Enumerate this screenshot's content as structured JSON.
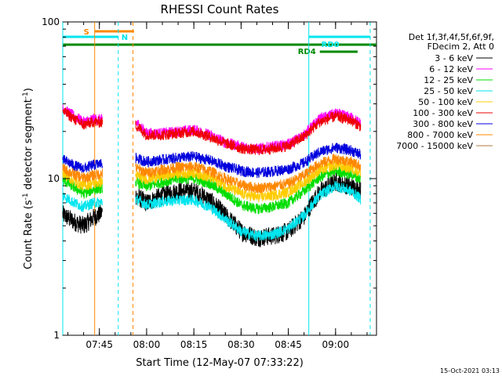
{
  "chart_data": {
    "type": "line",
    "title": "RHESSI Count Rates",
    "xlabel": "Start Time (12-May-07 07:33:22)",
    "ylabel_main": "Count Rate (s",
    "ylabel_sup": "-1",
    "ylabel_tail": " detector segment",
    "ylabel_sup2": "-1",
    "ylabel_end": ")",
    "y_scale": "log",
    "ylim": [
      1,
      100
    ],
    "xlim": [
      "07:33:22",
      "09:13:00"
    ],
    "x_ticks": [
      "07:45",
      "08:00",
      "08:15",
      "08:30",
      "08:45",
      "09:00"
    ],
    "y_ticks": [
      "1",
      "10",
      "100"
    ],
    "legend_header": [
      "Det 1f,3f,4f,5f,6f,9f,",
      "FDecim 2, Att 0"
    ],
    "legend_position": "right",
    "grid": false,
    "data_gap": [
      "07:48:00",
      "07:56:30"
    ],
    "series": [
      {
        "name": "3 - 6 keV",
        "color": "#000000",
        "points": [
          [
            "07:33:22",
            5.9
          ],
          [
            "07:37",
            5.3
          ],
          [
            "07:40",
            5.0
          ],
          [
            "07:43",
            5.6
          ],
          [
            "07:56:30",
            7.8
          ],
          [
            "08:00",
            7.0
          ],
          [
            "08:05",
            7.8
          ],
          [
            "08:10",
            8.3
          ],
          [
            "08:15",
            8.3
          ],
          [
            "08:20",
            7.3
          ],
          [
            "08:25",
            5.8
          ],
          [
            "08:30",
            4.6
          ],
          [
            "08:35",
            4.2
          ],
          [
            "08:40",
            4.3
          ],
          [
            "08:45",
            4.6
          ],
          [
            "08:50",
            5.7
          ],
          [
            "08:55",
            8.2
          ],
          [
            "09:00",
            9.5
          ],
          [
            "09:05",
            8.9
          ],
          [
            "09:08",
            8.4
          ]
        ]
      },
      {
        "name": "6 - 12 keV",
        "color": "#ff00ff",
        "points": [
          [
            "07:33:22",
            28
          ],
          [
            "07:37",
            25
          ],
          [
            "07:40",
            23
          ],
          [
            "07:43",
            24
          ],
          [
            "07:56:30",
            23
          ],
          [
            "08:00",
            19.5
          ],
          [
            "08:05",
            19.5
          ],
          [
            "08:10",
            20
          ],
          [
            "08:15",
            20.5
          ],
          [
            "08:20",
            19
          ],
          [
            "08:25",
            17
          ],
          [
            "08:30",
            16
          ],
          [
            "08:35",
            15.5
          ],
          [
            "08:40",
            16
          ],
          [
            "08:45",
            16.5
          ],
          [
            "08:50",
            19
          ],
          [
            "08:55",
            24
          ],
          [
            "09:00",
            26
          ],
          [
            "09:05",
            24.5
          ],
          [
            "09:08",
            22.5
          ]
        ]
      },
      {
        "name": "12 - 25 keV",
        "color": "#00dd00",
        "points": [
          [
            "07:33:22",
            9.8
          ],
          [
            "07:37",
            8.8
          ],
          [
            "07:40",
            8.0
          ],
          [
            "07:43",
            8.5
          ],
          [
            "07:56:30",
            9.5
          ],
          [
            "08:00",
            8.9
          ],
          [
            "08:05",
            9.5
          ],
          [
            "08:10",
            10
          ],
          [
            "08:15",
            10
          ],
          [
            "08:20",
            9.3
          ],
          [
            "08:25",
            8.0
          ],
          [
            "08:30",
            6.8
          ],
          [
            "08:35",
            6.4
          ],
          [
            "08:40",
            6.6
          ],
          [
            "08:45",
            7.0
          ],
          [
            "08:50",
            8.3
          ],
          [
            "08:55",
            10.2
          ],
          [
            "09:00",
            11.2
          ],
          [
            "09:05",
            10.6
          ],
          [
            "09:08",
            9.9
          ]
        ]
      },
      {
        "name": "25 - 50 keV",
        "color": "#00e5ee",
        "points": [
          [
            "07:33:22",
            7.8
          ],
          [
            "07:37",
            7.0
          ],
          [
            "07:40",
            6.6
          ],
          [
            "07:43",
            7.0
          ],
          [
            "07:56:30",
            7.4
          ],
          [
            "08:00",
            6.8
          ],
          [
            "08:05",
            7.1
          ],
          [
            "08:10",
            7.3
          ],
          [
            "08:15",
            7.3
          ],
          [
            "08:20",
            6.6
          ],
          [
            "08:25",
            5.5
          ],
          [
            "08:30",
            4.6
          ],
          [
            "08:35",
            4.3
          ],
          [
            "08:40",
            4.4
          ],
          [
            "08:45",
            4.8
          ],
          [
            "08:50",
            5.8
          ],
          [
            "08:55",
            7.8
          ],
          [
            "09:00",
            9.0
          ],
          [
            "09:05",
            8.3
          ],
          [
            "09:08",
            7.4
          ]
        ]
      },
      {
        "name": "50 - 100 keV",
        "color": "#ffcc00",
        "points": [
          [
            "07:33:22",
            10.8
          ],
          [
            "07:37",
            9.6
          ],
          [
            "07:40",
            9.0
          ],
          [
            "07:43",
            9.3
          ],
          [
            "07:56:30",
            10.5
          ],
          [
            "08:00",
            9.9
          ],
          [
            "08:05",
            10.4
          ],
          [
            "08:10",
            10.8
          ],
          [
            "08:15",
            10.9
          ],
          [
            "08:20",
            10.2
          ],
          [
            "08:25",
            9.0
          ],
          [
            "08:30",
            8.0
          ],
          [
            "08:35",
            7.6
          ],
          [
            "08:40",
            7.8
          ],
          [
            "08:45",
            8.2
          ],
          [
            "08:50",
            9.4
          ],
          [
            "08:55",
            11.3
          ],
          [
            "09:00",
            12.2
          ],
          [
            "09:05",
            11.6
          ],
          [
            "09:08",
            11.0
          ]
        ]
      },
      {
        "name": "100 - 300 keV",
        "color": "#ee0000",
        "points": [
          [
            "07:33:22",
            27
          ],
          [
            "07:37",
            24
          ],
          [
            "07:40",
            22
          ],
          [
            "07:43",
            23
          ],
          [
            "07:56:30",
            22
          ],
          [
            "08:00",
            19
          ],
          [
            "08:05",
            19
          ],
          [
            "08:10",
            19.5
          ],
          [
            "08:15",
            20
          ],
          [
            "08:20",
            18.5
          ],
          [
            "08:25",
            16.8
          ],
          [
            "08:30",
            15.6
          ],
          [
            "08:35",
            15.2
          ],
          [
            "08:40",
            15.5
          ],
          [
            "08:45",
            16.2
          ],
          [
            "08:50",
            18.5
          ],
          [
            "08:55",
            23
          ],
          [
            "09:00",
            25
          ],
          [
            "09:05",
            23.5
          ],
          [
            "09:08",
            21.5
          ]
        ]
      },
      {
        "name": "300 - 800 keV",
        "color": "#0000dd",
        "points": [
          [
            "07:33:22",
            13.2
          ],
          [
            "07:37",
            12.1
          ],
          [
            "07:40",
            11.6
          ],
          [
            "07:43",
            12.2
          ],
          [
            "07:56:30",
            13.5
          ],
          [
            "08:00",
            12.8
          ],
          [
            "08:05",
            13.2
          ],
          [
            "08:10",
            13.6
          ],
          [
            "08:15",
            13.8
          ],
          [
            "08:20",
            13.1
          ],
          [
            "08:25",
            12.0
          ],
          [
            "08:30",
            11.2
          ],
          [
            "08:35",
            10.9
          ],
          [
            "08:40",
            11.1
          ],
          [
            "08:45",
            11.5
          ],
          [
            "08:50",
            12.6
          ],
          [
            "08:55",
            14.8
          ],
          [
            "09:00",
            15.8
          ],
          [
            "09:05",
            15.1
          ],
          [
            "09:08",
            14.2
          ]
        ]
      },
      {
        "name": "800 - 7000 keV",
        "color": "#ff8800",
        "points": [
          [
            "07:33:22",
            11.6
          ],
          [
            "07:37",
            10.6
          ],
          [
            "07:40",
            10.1
          ],
          [
            "07:43",
            10.5
          ],
          [
            "07:56:30",
            11.7
          ],
          [
            "08:00",
            10.9
          ],
          [
            "08:05",
            11.4
          ],
          [
            "08:10",
            11.8
          ],
          [
            "08:15",
            11.9
          ],
          [
            "08:20",
            11.2
          ],
          [
            "08:25",
            10.0
          ],
          [
            "08:30",
            9.1
          ],
          [
            "08:35",
            8.7
          ],
          [
            "08:40",
            8.9
          ],
          [
            "08:45",
            9.3
          ],
          [
            "08:50",
            10.5
          ],
          [
            "08:55",
            12.5
          ],
          [
            "09:00",
            13.4
          ],
          [
            "09:05",
            12.8
          ],
          [
            "09:08",
            12.0
          ]
        ]
      },
      {
        "name": "7000 - 15000 keV",
        "color": "#b07a3c",
        "points": []
      }
    ],
    "markers": [
      {
        "label": "S",
        "color": "#ff8800",
        "bar": [
          "07:43:30",
          "07:56:00"
        ],
        "row": 0
      },
      {
        "label": "N",
        "color": "#00e5ee",
        "bar": [
          "07:33:22",
          "07:51:00"
        ],
        "row": 1
      },
      {
        "label": "",
        "color": "#008800",
        "bar": [
          "07:33:22",
          "09:13:00"
        ],
        "row": 2
      },
      {
        "label": "RD0",
        "color": "#00e5ee",
        "bar": [
          "08:51:30",
          "09:11:00"
        ],
        "row": 1
      },
      {
        "label": "RD4",
        "color": "#008800",
        "bar": [
          "08:55:00",
          "09:07:00"
        ],
        "row": 3
      }
    ],
    "vlines": [
      {
        "time": "07:33:22",
        "color": "#00e5ee",
        "style": "solid"
      },
      {
        "time": "07:43:30",
        "color": "#ff8800",
        "style": "solid"
      },
      {
        "time": "07:51:00",
        "color": "#00e5ee",
        "style": "dashed"
      },
      {
        "time": "07:55:40",
        "color": "#ff8800",
        "style": "dashed"
      },
      {
        "time": "08:51:30",
        "color": "#00e5ee",
        "style": "solid"
      },
      {
        "time": "09:11:00",
        "color": "#00e5ee",
        "style": "dashed"
      }
    ],
    "timestamp": "15-Oct-2021 03:13"
  }
}
